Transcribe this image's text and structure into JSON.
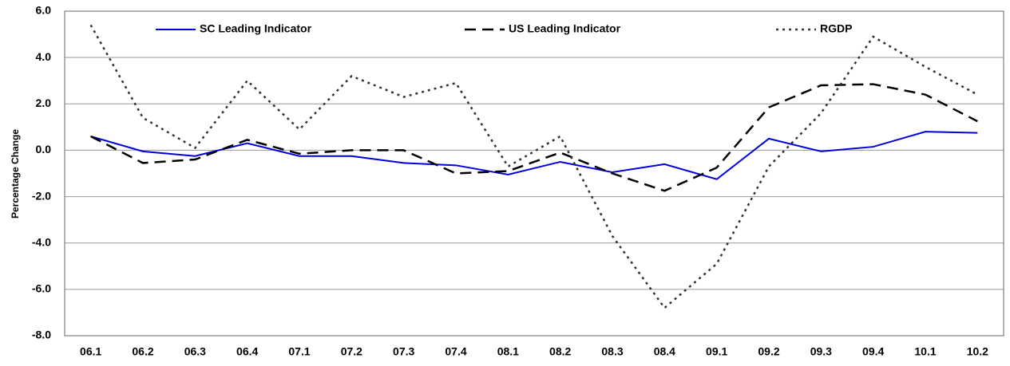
{
  "chart_data": {
    "type": "line",
    "y_label": "Percentage Change",
    "categories": [
      "06.1",
      "06.2",
      "06.3",
      "06.4",
      "07.1",
      "07.2",
      "07.3",
      "07.4",
      "08.1",
      "08.2",
      "08.3",
      "08.4",
      "09.1",
      "09.2",
      "09.3",
      "09.4",
      "10.1",
      "10.2"
    ],
    "series": [
      {
        "name": "SC Leading Indicator",
        "color": "#0000e0",
        "style": "solid",
        "values": [
          0.6,
          -0.05,
          -0.25,
          0.3,
          -0.25,
          -0.25,
          -0.55,
          -0.65,
          -1.05,
          -0.5,
          -0.95,
          -0.6,
          -1.25,
          0.5,
          -0.05,
          0.15,
          0.8,
          0.75
        ]
      },
      {
        "name": "US Leading Indicator",
        "color": "#000000",
        "style": "dashed",
        "values": [
          0.6,
          -0.55,
          -0.4,
          0.45,
          -0.15,
          0.0,
          0.0,
          -1.0,
          -0.9,
          -0.1,
          -1.0,
          -1.75,
          -0.75,
          1.85,
          2.8,
          2.85,
          2.4,
          1.25
        ]
      },
      {
        "name": "RGDP",
        "color": "#333333",
        "style": "dotted",
        "values": [
          5.4,
          1.4,
          0.1,
          3.0,
          0.9,
          3.2,
          2.3,
          2.9,
          -0.7,
          0.6,
          -3.7,
          -6.8,
          -4.9,
          -0.7,
          1.6,
          4.9,
          3.6,
          2.4
        ]
      }
    ],
    "ylim": [
      -8,
      6
    ],
    "yticks": [
      {
        "value": -8,
        "label": "-8.0"
      },
      {
        "value": -6,
        "label": "-6.0"
      },
      {
        "value": -4,
        "label": "-4.0"
      },
      {
        "value": -2,
        "label": "-2.0"
      },
      {
        "value": 0,
        "label": "0.0"
      },
      {
        "value": 2,
        "label": "2.0"
      },
      {
        "value": 4,
        "label": "4.0"
      },
      {
        "value": 6,
        "label": "6.0"
      }
    ],
    "grid": true
  }
}
